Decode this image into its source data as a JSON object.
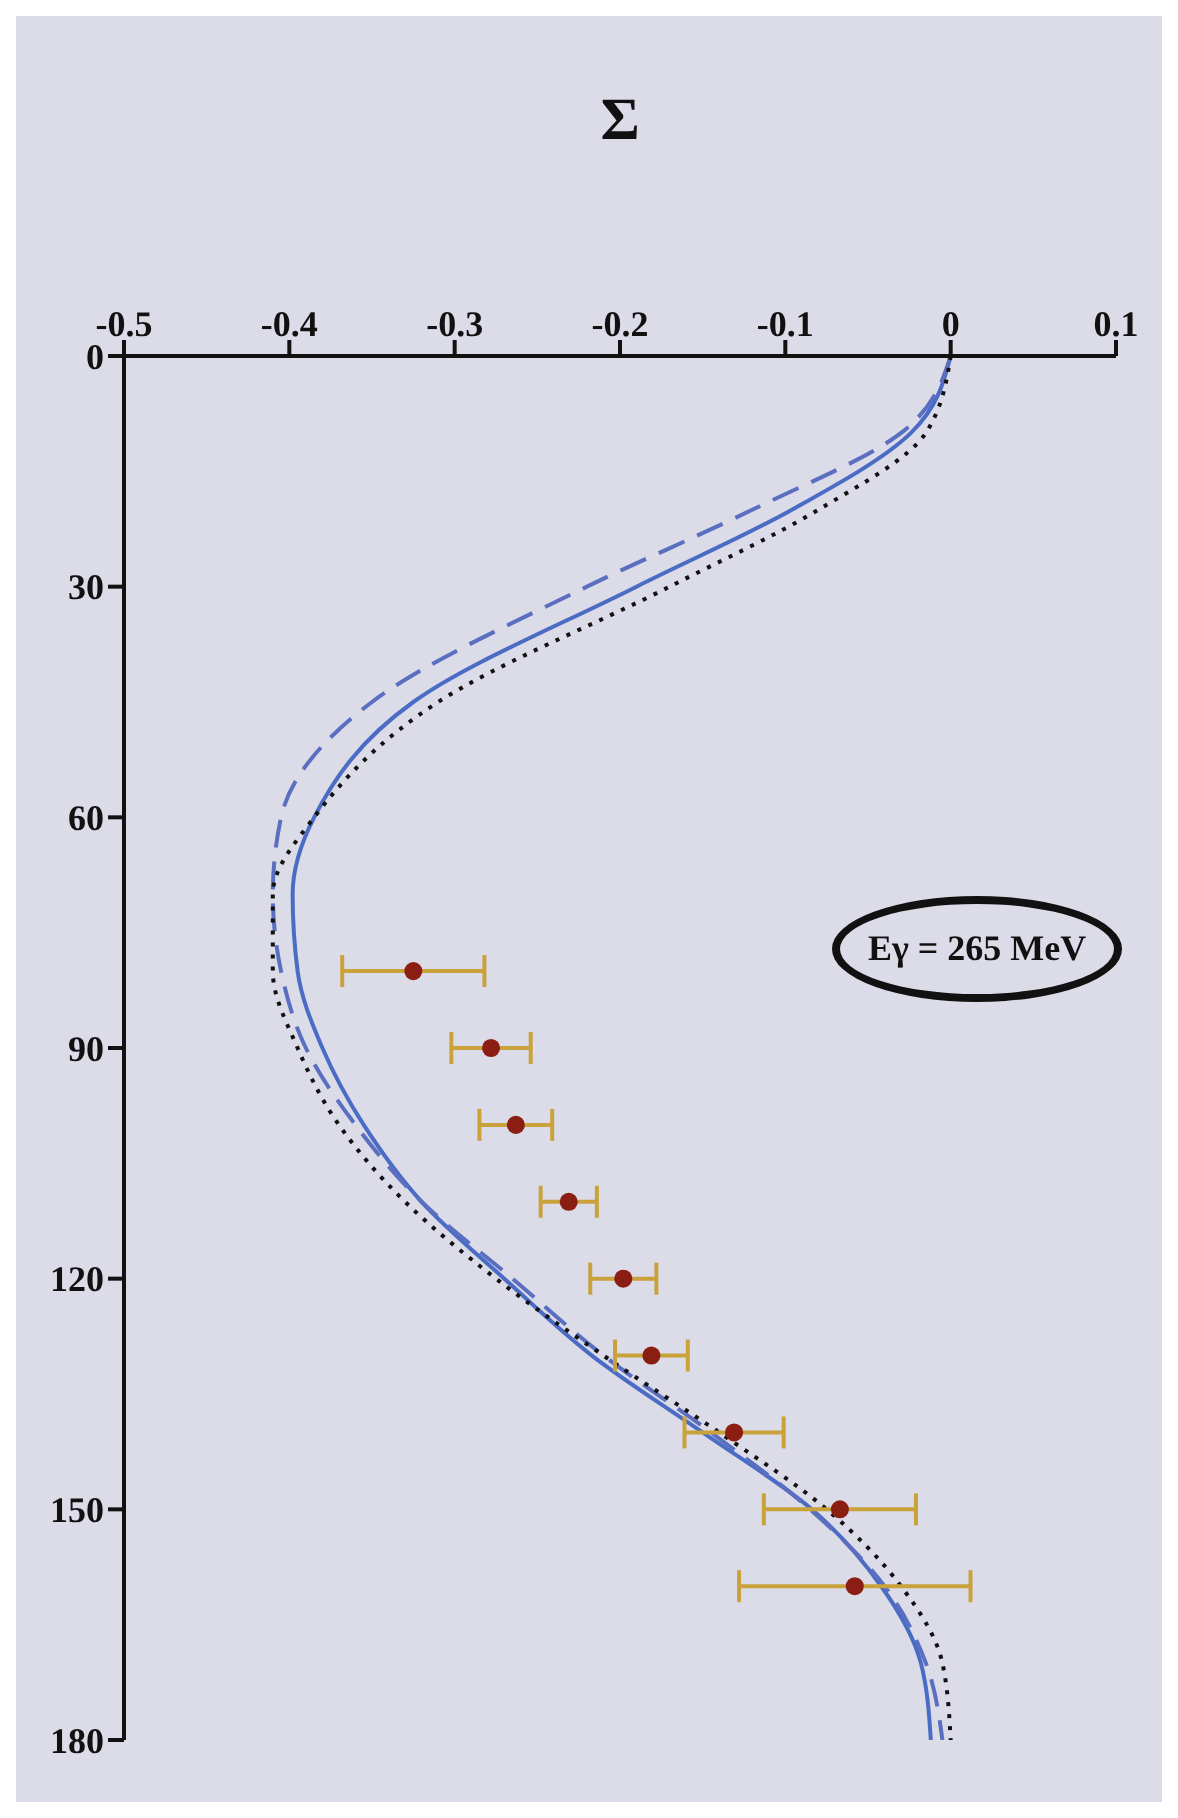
{
  "chart_data": {
    "type": "line",
    "xlabel": "Σ",
    "annotations": [
      "Eγ = 265 MeV"
    ],
    "xlim": [
      -0.5,
      0.1
    ],
    "xticks": [
      -0.5,
      -0.4,
      -0.3,
      -0.2,
      -0.1,
      0,
      0.1
    ],
    "ylim": [
      180,
      0
    ],
    "yticks": [
      0,
      30,
      60,
      90,
      120,
      150,
      180
    ],
    "grid": false,
    "series": [
      {
        "color": "#4a6cc4",
        "line_style": "solid",
        "marker": "none",
        "x": [
          0,
          -0.024,
          -0.096,
          -0.19,
          -0.325,
          -0.385,
          -0.398,
          -0.395,
          -0.38,
          -0.355,
          -0.32,
          -0.27,
          -0.217,
          -0.15,
          -0.084,
          -0.042,
          -0.018,
          -0.012
        ],
        "values": [
          0,
          10,
          20,
          30,
          45,
          60,
          70,
          80,
          90,
          100,
          110,
          120,
          130,
          140,
          150,
          160,
          170,
          180
        ]
      },
      {
        "color": "#5b6fc0",
        "line_style": "dashed",
        "marker": "none",
        "x": [
          0,
          -0.03,
          -0.12,
          -0.22,
          -0.35,
          -0.405,
          -0.41,
          -0.405,
          -0.39,
          -0.36,
          -0.32,
          -0.265,
          -0.21,
          -0.145,
          -0.085,
          -0.04,
          -0.015,
          -0.005
        ],
        "values": [
          0,
          10,
          20,
          30,
          45,
          60,
          70,
          80,
          90,
          100,
          110,
          120,
          130,
          140,
          150,
          160,
          170,
          180
        ]
      },
      {
        "color": "#111111",
        "line_style": "dotted",
        "marker": "none",
        "x": [
          0,
          -0.015,
          -0.08,
          -0.17,
          -0.31,
          -0.385,
          -0.41,
          -0.41,
          -0.395,
          -0.37,
          -0.33,
          -0.275,
          -0.21,
          -0.14,
          -0.075,
          -0.03,
          -0.005,
          0
        ],
        "values": [
          0,
          10,
          20,
          30,
          45,
          60,
          70,
          80,
          90,
          100,
          110,
          120,
          130,
          140,
          150,
          160,
          170,
          180
        ]
      },
      {
        "type": "scatter",
        "color": "#8b1e12",
        "marker": "circle",
        "x": [
          -0.325,
          -0.278,
          -0.263,
          -0.231,
          -0.198,
          -0.181,
          -0.131,
          -0.067,
          -0.058
        ],
        "values": [
          80,
          90,
          100,
          110,
          120,
          130,
          140,
          150,
          160
        ],
        "xerrors": [
          0.043,
          0.024,
          0.022,
          0.017,
          0.02,
          0.022,
          0.03,
          0.046,
          0.07
        ]
      }
    ]
  }
}
